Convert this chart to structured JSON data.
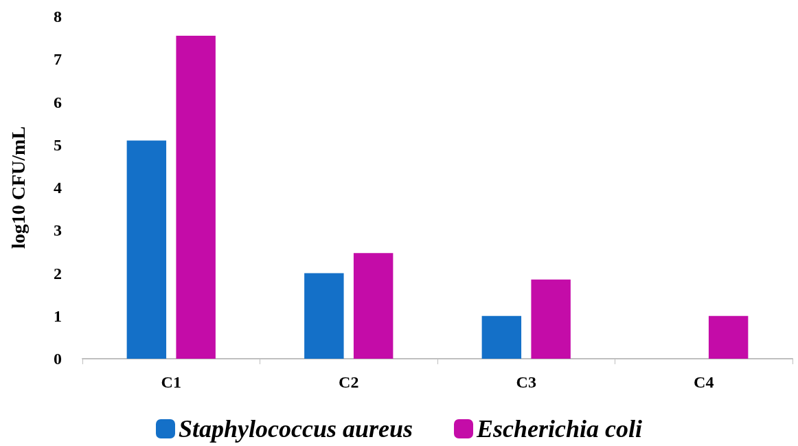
{
  "chart_data": {
    "type": "bar",
    "ylabel": "log10 CFU/mL",
    "categories": [
      "C1",
      "C2",
      "C3",
      "C4"
    ],
    "series": [
      {
        "name": "Staphylococcus aureus",
        "color": "#1470c8",
        "values": [
          5.1,
          2.0,
          1.0,
          null
        ]
      },
      {
        "name": "Escherichia coli",
        "color": "#c40ca8",
        "values": [
          7.55,
          2.47,
          1.85,
          1.0
        ]
      }
    ],
    "ylim": [
      0,
      8
    ],
    "yticks": [
      0,
      1,
      2,
      3,
      4,
      5,
      6,
      7,
      8
    ],
    "grid": false,
    "legend": "bottom"
  }
}
